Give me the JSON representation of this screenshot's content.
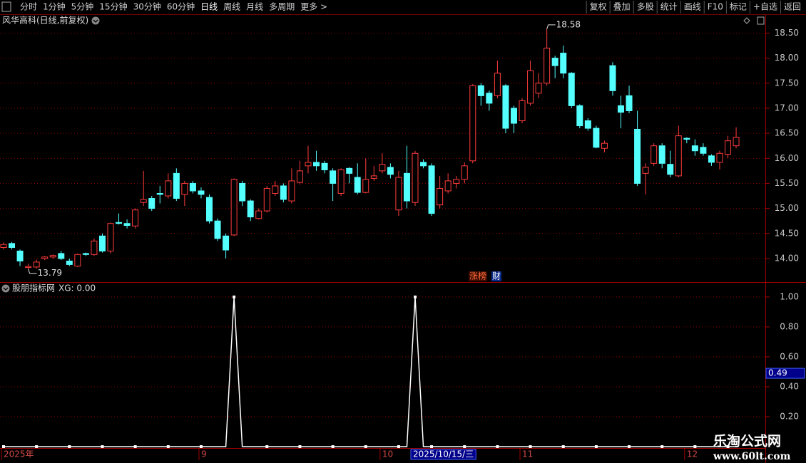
{
  "toolbar": {
    "left": [
      "分时",
      "1分钟",
      "5分钟",
      "15分钟",
      "30分钟",
      "60分钟",
      "日线",
      "周线",
      "月线",
      "多周期",
      "更多 >"
    ],
    "active": "日线",
    "right": [
      "复权",
      "叠加",
      "多股",
      "统计",
      "画线",
      "F10",
      "标记",
      "+自选",
      "返回"
    ]
  },
  "chart_data": [
    {
      "type": "candlestick",
      "title": "风华高科(日线,前复权)",
      "up_color": "#ff3c3c",
      "down_color": "#54ffff",
      "open": [
        14.22,
        14.3,
        14.15,
        13.82,
        13.83,
        14.0,
        14.03,
        14.1,
        13.95,
        13.85,
        14.1,
        14.08,
        14.45,
        14.15,
        14.72,
        14.7,
        14.65,
        15.12,
        15.2,
        15.3,
        15.25,
        15.7,
        15.28,
        15.5,
        15.35,
        15.22,
        14.75,
        14.45,
        14.47,
        15.5,
        15.15,
        14.8,
        14.95,
        15.3,
        15.45,
        15.15,
        15.52,
        15.85,
        15.92,
        15.9,
        15.75,
        15.3,
        15.8,
        15.62,
        15.32,
        15.6,
        15.75,
        15.82,
        14.97,
        15.7,
        15.12,
        15.92,
        15.85,
        15.07,
        15.35,
        15.5,
        15.58,
        15.95,
        17.45,
        17.3,
        17.25,
        17.45,
        17.0,
        16.75,
        17.1,
        17.3,
        17.5,
        18.0,
        18.1,
        17.7,
        17.05,
        16.75,
        16.6,
        16.2,
        17.85,
        17.05,
        17.25,
        16.58,
        15.7,
        15.9,
        16.25,
        15.88,
        15.65,
        16.4,
        16.25,
        16.22,
        16.05,
        15.92,
        16.08,
        16.25
      ],
      "high": [
        14.32,
        14.33,
        14.18,
        13.9,
        13.98,
        14.05,
        14.08,
        14.15,
        14.0,
        14.1,
        14.12,
        14.4,
        14.5,
        14.72,
        14.9,
        14.78,
        15.0,
        15.75,
        15.25,
        15.45,
        15.7,
        15.8,
        15.55,
        15.55,
        15.42,
        15.28,
        14.8,
        14.5,
        15.6,
        15.55,
        15.18,
        15.0,
        15.45,
        15.55,
        15.5,
        15.8,
        15.95,
        16.25,
        16.15,
        15.95,
        15.8,
        15.8,
        15.82,
        15.9,
        16.0,
        15.85,
        16.1,
        15.9,
        15.75,
        16.25,
        16.15,
        15.98,
        15.9,
        15.65,
        15.7,
        15.65,
        15.92,
        17.48,
        17.5,
        17.35,
        17.95,
        17.48,
        17.05,
        17.2,
        17.95,
        17.7,
        18.58,
        18.05,
        18.25,
        17.72,
        17.08,
        16.8,
        16.65,
        16.35,
        17.92,
        17.25,
        17.45,
        16.95,
        15.9,
        16.3,
        16.3,
        16.15,
        16.65,
        16.42,
        16.38,
        16.3,
        16.08,
        16.15,
        16.45,
        16.62
      ],
      "low": [
        14.18,
        14.18,
        13.85,
        13.79,
        13.8,
        13.97,
        14.0,
        13.97,
        13.85,
        13.83,
        14.05,
        14.05,
        14.12,
        14.1,
        14.68,
        14.6,
        14.6,
        15.05,
        14.95,
        15.1,
        15.2,
        15.15,
        15.05,
        15.3,
        15.2,
        14.7,
        14.35,
        14.0,
        14.45,
        15.05,
        14.75,
        14.78,
        14.92,
        15.25,
        15.12,
        15.1,
        15.48,
        15.7,
        15.75,
        15.7,
        15.15,
        15.25,
        15.5,
        15.28,
        15.3,
        15.55,
        15.7,
        15.6,
        14.85,
        15.0,
        15.05,
        15.8,
        14.85,
        15.0,
        15.3,
        15.4,
        15.5,
        15.9,
        17.05,
        16.95,
        17.2,
        16.5,
        16.5,
        16.7,
        17.05,
        17.2,
        17.45,
        17.6,
        17.6,
        17.0,
        16.6,
        16.55,
        16.2,
        16.12,
        17.25,
        16.6,
        16.9,
        15.45,
        15.28,
        15.85,
        15.8,
        15.62,
        15.62,
        16.3,
        16.05,
        16.05,
        15.85,
        15.78,
        16.0,
        16.2
      ],
      "close": [
        14.28,
        14.22,
        13.95,
        13.84,
        13.93,
        14.03,
        14.06,
        14.0,
        13.88,
        14.08,
        14.08,
        14.35,
        14.15,
        14.7,
        14.7,
        14.66,
        14.97,
        15.18,
        15.0,
        15.28,
        15.55,
        15.2,
        15.5,
        15.35,
        15.28,
        14.75,
        14.4,
        14.17,
        15.58,
        15.15,
        14.83,
        14.95,
        15.4,
        15.45,
        15.18,
        15.55,
        15.75,
        15.92,
        15.85,
        15.77,
        15.5,
        15.77,
        15.7,
        15.32,
        15.58,
        15.65,
        15.88,
        15.68,
        15.62,
        15.15,
        16.1,
        15.85,
        14.9,
        15.4,
        15.55,
        15.58,
        15.85,
        17.45,
        17.25,
        17.1,
        17.7,
        16.6,
        16.7,
        17.15,
        17.75,
        17.5,
        18.2,
        17.85,
        17.7,
        17.05,
        16.65,
        16.6,
        16.22,
        16.3,
        17.35,
        16.92,
        16.95,
        15.5,
        15.82,
        16.25,
        15.9,
        15.68,
        16.45,
        16.38,
        16.15,
        16.1,
        15.92,
        16.1,
        16.35,
        16.42
      ],
      "annotations": [
        18.58,
        13.79
      ],
      "tags": [
        "涨榜",
        "财"
      ],
      "ylim": [
        13.53,
        18.62
      ],
      "yticks": [
        {
          "value": 14,
          "label": "14.00"
        },
        {
          "value": 14.5,
          "label": "14.50"
        },
        {
          "value": 15,
          "label": "15.00"
        },
        {
          "value": 15.5,
          "label": "15.50"
        },
        {
          "value": 16,
          "label": "16.00"
        },
        {
          "value": 16.5,
          "label": "16.50"
        },
        {
          "value": 17,
          "label": "17.00"
        },
        {
          "value": 17.5,
          "label": "17.50"
        },
        {
          "value": 18,
          "label": "18.00"
        },
        {
          "value": 18.5,
          "label": "18.50"
        }
      ],
      "grid": true
    },
    {
      "type": "line",
      "title": "股朋指标网",
      "readout": "XG: 0.00",
      "color": "#ffffff",
      "values": [
        0,
        0,
        0,
        0,
        0,
        0,
        0,
        0,
        0,
        0,
        0,
        0,
        0,
        0,
        0,
        0,
        0,
        0,
        0,
        0,
        0,
        0,
        0,
        0,
        0,
        0,
        0,
        0,
        1,
        0,
        0,
        0,
        0,
        0,
        0,
        0,
        0,
        0,
        0,
        0,
        0,
        0,
        0,
        0,
        0,
        0,
        0,
        0,
        0,
        0,
        1,
        0,
        0,
        0,
        0,
        0,
        0,
        0,
        0,
        0,
        0,
        0,
        0,
        0,
        0,
        0,
        0,
        0,
        0,
        0,
        0,
        0,
        0,
        0,
        0,
        0,
        0,
        0,
        0,
        0,
        0,
        0,
        0,
        0,
        0,
        0,
        0,
        0,
        0,
        0
      ],
      "ylim": [
        0,
        1.09
      ],
      "yticks": [
        {
          "value": 0.2,
          "label": "0.20"
        },
        {
          "value": 0.4,
          "label": "0.40"
        },
        {
          "value": 0.6,
          "label": "0.60"
        },
        {
          "value": 0.8,
          "label": "0.80"
        },
        {
          "value": 1,
          "label": "1.00"
        }
      ],
      "cursor_value": 0.49,
      "grid": true
    }
  ],
  "x_axis": {
    "ticks": [
      {
        "value": 0,
        "label": "2025年"
      },
      {
        "value": 24,
        "label": "9"
      },
      {
        "value": 46,
        "label": "10"
      },
      {
        "value": 63,
        "label": "11"
      },
      {
        "value": 83,
        "label": "12"
      }
    ],
    "cursor_label": "2025/10/15/三"
  },
  "watermark": {
    "name": "乐淘公式网",
    "url": "www.60lt.com"
  }
}
